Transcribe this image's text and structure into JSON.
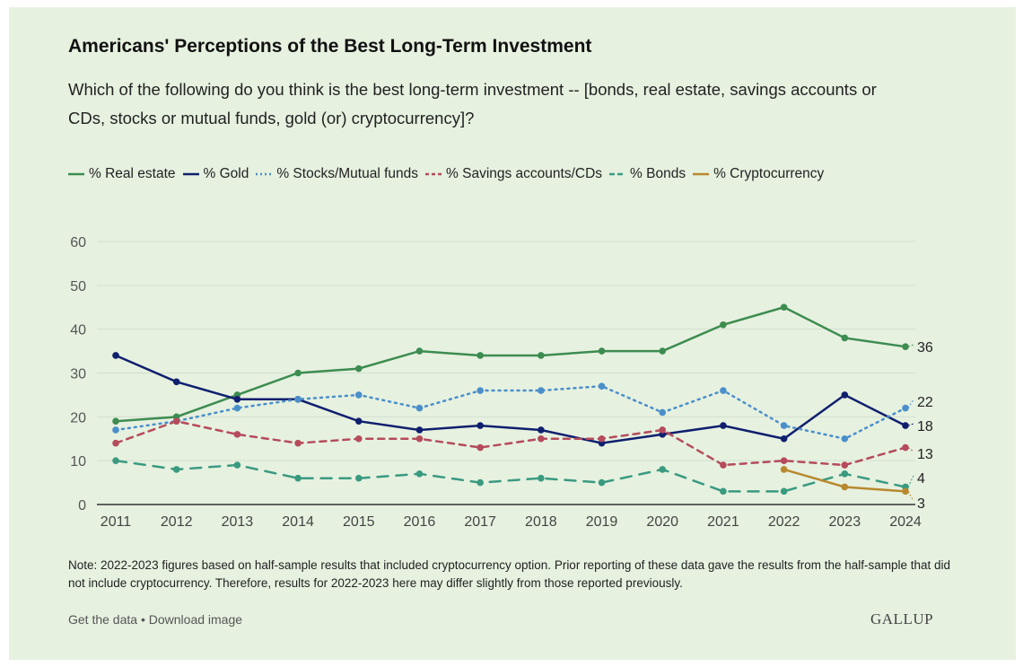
{
  "title": "Americans' Perceptions of the Best Long-Term Investment",
  "subtitle": "Which of the following do you think is the best long-term investment -- [bonds, real estate, savings accounts or CDs, stocks or mutual funds, gold (or) cryptocurrency]?",
  "note": "Note: 2022-2023 figures based on half-sample results that included cryptocurrency option. Prior reporting of these data gave the results from the half-sample that did not include cryptocurrency. Therefore, results for 2022-2023 here may differ slightly from those reported previously.",
  "links": {
    "get_data": "Get the data",
    "separator": " • ",
    "download": "Download image"
  },
  "logo": "GALLUP",
  "chart_data": {
    "type": "line",
    "x": [
      2011,
      2012,
      2013,
      2014,
      2015,
      2016,
      2017,
      2018,
      2019,
      2020,
      2021,
      2022,
      2023,
      2024
    ],
    "ylim": [
      0,
      60
    ],
    "yticks": [
      0,
      10,
      20,
      30,
      40,
      50,
      60
    ],
    "grid": true,
    "legend_position": "top",
    "series": [
      {
        "name": "% Real estate",
        "color": "#3d8c50",
        "style": "solid",
        "values": [
          19,
          20,
          25,
          30,
          31,
          35,
          34,
          34,
          35,
          35,
          41,
          45,
          38,
          36
        ],
        "end_label": "36"
      },
      {
        "name": "% Gold",
        "color": "#0f1f6e",
        "style": "solid",
        "values": [
          34,
          28,
          24,
          24,
          19,
          17,
          18,
          17,
          14,
          16,
          18,
          15,
          25,
          18
        ],
        "end_label": "18"
      },
      {
        "name": "% Stocks/Mutual funds",
        "color": "#4b8fca",
        "style": "dotted",
        "values": [
          17,
          19,
          22,
          24,
          25,
          22,
          26,
          26,
          27,
          21,
          26,
          18,
          15,
          22
        ],
        "end_label": "22"
      },
      {
        "name": "% Savings accounts/CDs",
        "color": "#b54b5b",
        "style": "dashed",
        "values": [
          14,
          19,
          16,
          14,
          15,
          15,
          13,
          15,
          15,
          17,
          9,
          10,
          9,
          13
        ],
        "end_label": "13"
      },
      {
        "name": "% Bonds",
        "color": "#3a9a80",
        "style": "longdash",
        "values": [
          10,
          8,
          9,
          6,
          6,
          7,
          5,
          6,
          5,
          8,
          3,
          3,
          7,
          4
        ],
        "end_label": "4"
      },
      {
        "name": "% Cryptocurrency",
        "color": "#b8892e",
        "style": "solid",
        "values": [
          null,
          null,
          null,
          null,
          null,
          null,
          null,
          null,
          null,
          null,
          null,
          8,
          4,
          3
        ],
        "end_label": "3"
      }
    ]
  }
}
